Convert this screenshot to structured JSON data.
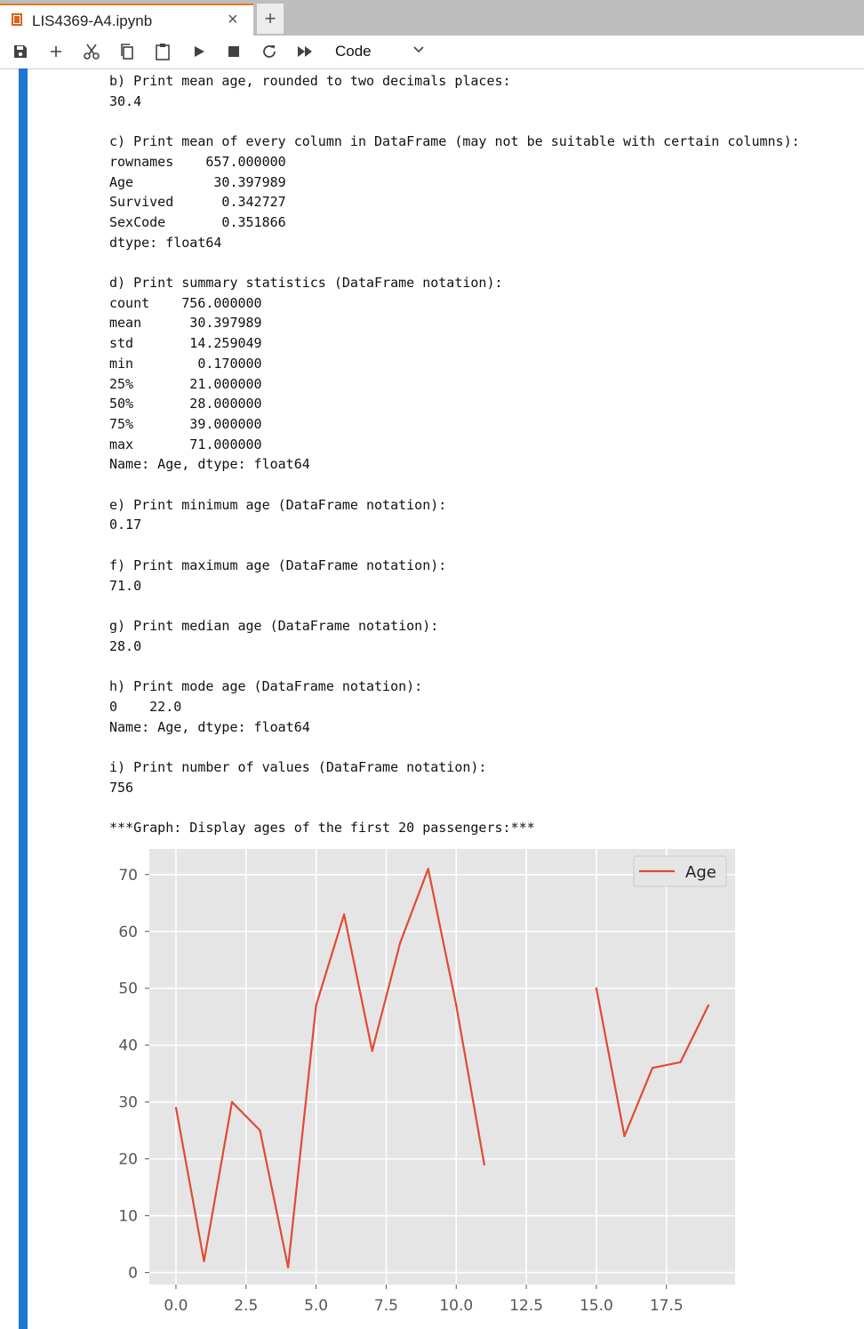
{
  "tab": {
    "title": "LIS4369-A4.ipynb",
    "close": "×",
    "add": "+"
  },
  "toolbar": {
    "cell_type": "Code"
  },
  "output": {
    "lines": [
      "b) Print mean age, rounded to two decimals places:",
      "30.4",
      "",
      "c) Print mean of every column in DataFrame (may not be suitable with certain columns):",
      "rownames    657.000000",
      "Age          30.397989",
      "Survived      0.342727",
      "SexCode       0.351866",
      "dtype: float64",
      "",
      "d) Print summary statistics (DataFrame notation):",
      "count    756.000000",
      "mean      30.397989",
      "std       14.259049",
      "min        0.170000",
      "25%       21.000000",
      "50%       28.000000",
      "75%       39.000000",
      "max       71.000000",
      "Name: Age, dtype: float64",
      "",
      "e) Print minimum age (DataFrame notation):",
      "0.17",
      "",
      "f) Print maximum age (DataFrame notation):",
      "71.0",
      "",
      "g) Print median age (DataFrame notation):",
      "28.0",
      "",
      "h) Print mode age (DataFrame notation):",
      "0    22.0",
      "Name: Age, dtype: float64",
      "",
      "i) Print number of values (DataFrame notation):",
      "756",
      "",
      "***Graph: Display ages of the first 20 passengers:***"
    ]
  },
  "chart_data": {
    "type": "line",
    "title": "",
    "xlabel": "",
    "ylabel": "",
    "x": [
      0,
      1,
      2,
      3,
      4,
      5,
      6,
      7,
      8,
      9,
      10,
      11,
      12,
      13,
      14,
      15,
      16,
      17,
      18,
      19
    ],
    "series": [
      {
        "name": "Age",
        "color": "#e24a33",
        "values": [
          29,
          2,
          30,
          25,
          0.92,
          47,
          63,
          39,
          58,
          71,
          47,
          19,
          null,
          null,
          null,
          50,
          24,
          36,
          37,
          47
        ]
      }
    ],
    "xlim": [
      -0.95,
      19.95
    ],
    "ylim": [
      -2.1,
      74.5
    ],
    "xticks": [
      0.0,
      2.5,
      5.0,
      7.5,
      10.0,
      12.5,
      15.0,
      17.5
    ],
    "xtick_labels": [
      "0.0",
      "2.5",
      "5.0",
      "7.5",
      "10.0",
      "12.5",
      "15.0",
      "17.5"
    ],
    "yticks": [
      0,
      10,
      20,
      30,
      40,
      50,
      60,
      70
    ],
    "ytick_labels": [
      "0",
      "10",
      "20",
      "30",
      "40",
      "50",
      "60",
      "70"
    ],
    "grid": true,
    "style": "ggplot",
    "legend": "upper right"
  }
}
